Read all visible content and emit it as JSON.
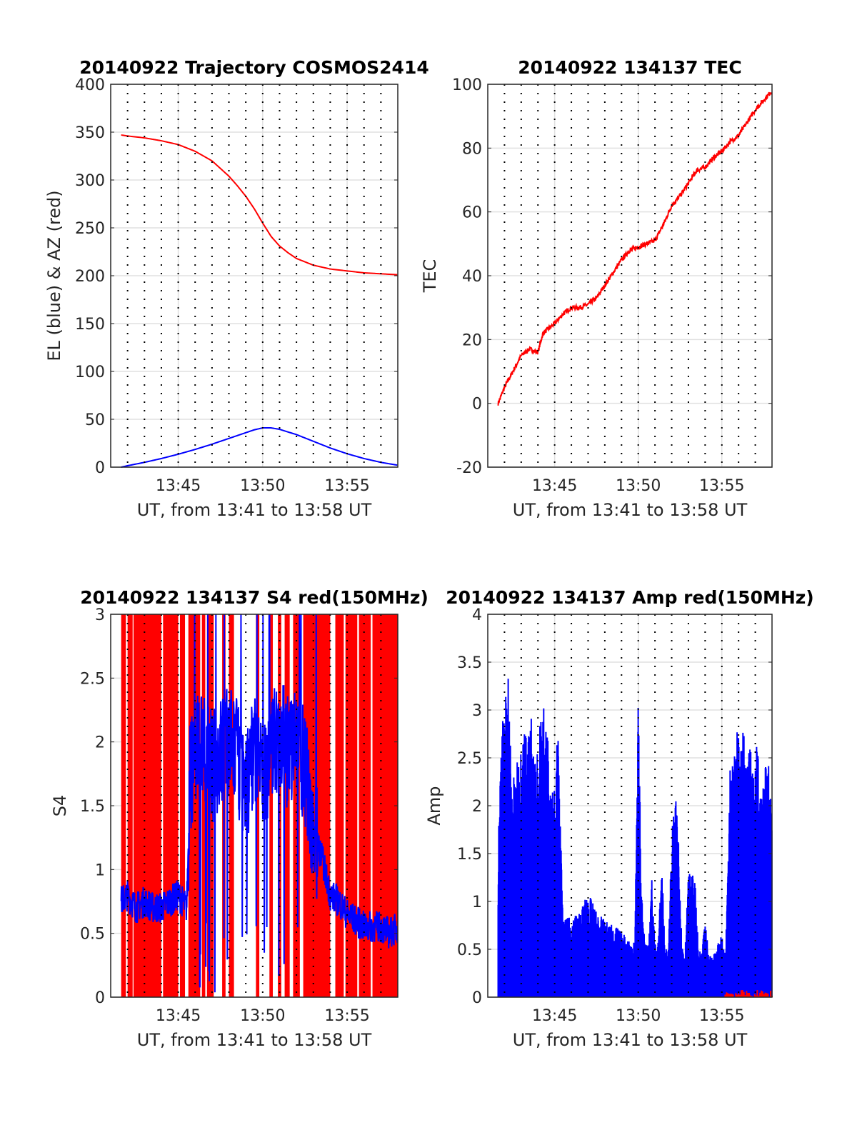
{
  "chart_data": [
    {
      "type": "line",
      "title": "20140922 Trajectory COSMOS2414",
      "xlabel": "UT, from 13:41 to 13:58 UT",
      "ylabel": "EL (blue) & AZ (red)",
      "xlim": [
        41,
        58
      ],
      "ylim": [
        0,
        400
      ],
      "yticks": [
        0,
        50,
        100,
        150,
        200,
        250,
        300,
        350,
        400
      ],
      "xticks": [
        45,
        50,
        55
      ],
      "xtick_labels": [
        "13:45",
        "13:50",
        "13:55"
      ],
      "series": [
        {
          "name": "AZ",
          "color": "#ff0000",
          "x": [
            41.62,
            42,
            43,
            44,
            45,
            46,
            47,
            48,
            48.5,
            49,
            49.5,
            50,
            50.5,
            51,
            51.5,
            52,
            53,
            54,
            55,
            56,
            57,
            58
          ],
          "y": [
            347,
            346,
            344,
            341,
            337,
            330,
            320,
            304,
            294,
            283,
            270,
            255,
            241,
            231,
            224,
            218,
            211,
            207,
            205,
            203,
            202,
            201
          ]
        },
        {
          "name": "EL",
          "color": "#0000ff",
          "x": [
            41.62,
            42,
            43,
            44,
            45,
            46,
            47,
            48,
            49,
            49.5,
            50,
            50.5,
            51,
            52,
            53,
            54,
            55,
            56,
            57,
            58
          ],
          "y": [
            0,
            1.5,
            5,
            9,
            13.5,
            18.5,
            24,
            30,
            36,
            39,
            41,
            41,
            39.5,
            34,
            27,
            20,
            14,
            9,
            5,
            2
          ]
        }
      ]
    },
    {
      "type": "line",
      "title": "20140922 134137 TEC",
      "xlabel": "UT, from 13:41 to 13:58 UT",
      "ylabel": "TEC",
      "xlim": [
        41,
        58
      ],
      "ylim": [
        -20,
        100
      ],
      "yticks": [
        -20,
        0,
        20,
        40,
        60,
        80,
        100
      ],
      "xticks": [
        45,
        50,
        55
      ],
      "xtick_labels": [
        "13:45",
        "13:50",
        "13:55"
      ],
      "series": [
        {
          "name": "TEC",
          "color": "#ff0000",
          "x": [
            41.62,
            42,
            42.5,
            43,
            43.5,
            44,
            44.3,
            45,
            45.5,
            46,
            46.5,
            47,
            47.5,
            48,
            48.5,
            49,
            49.5,
            50,
            50.5,
            51,
            51.5,
            52,
            52.5,
            53,
            53.5,
            54,
            54.5,
            55,
            55.5,
            56,
            56.5,
            57,
            57.5,
            58
          ],
          "y": [
            0,
            5,
            10,
            15,
            17,
            16,
            22,
            25,
            28,
            30,
            30,
            31,
            33,
            37,
            41,
            45,
            48,
            49,
            50,
            51,
            56,
            62,
            65,
            69,
            73,
            74,
            77,
            79,
            82,
            84,
            88,
            92,
            95,
            98
          ]
        }
      ]
    },
    {
      "type": "line",
      "title": "20140922 134137 S4 red(150MHz)",
      "xlabel": "UT, from 13:41 to 13:58 UT",
      "ylabel": "S4",
      "xlim": [
        41,
        58
      ],
      "ylim": [
        0,
        3
      ],
      "yticks": [
        0,
        0.5,
        1,
        1.5,
        2,
        2.5,
        3
      ],
      "xticks": [
        45,
        50,
        55
      ],
      "xtick_labels": [
        "13:45",
        "13:50",
        "13:55"
      ],
      "series": [
        {
          "name": "S4 red fill",
          "color": "#ff0000",
          "x_range": [
            41.62,
            58
          ],
          "gaps": [
            [
              41.9,
              42.0
            ],
            [
              42.3,
              42.35
            ],
            [
              44.0,
              44.1
            ],
            [
              45.0,
              45.1
            ],
            [
              45.4,
              45.6
            ],
            [
              46.3,
              46.4
            ],
            [
              46.6,
              46.7
            ],
            [
              47.1,
              47.6
            ],
            [
              47.8,
              48.0
            ],
            [
              48.3,
              49.6
            ],
            [
              49.8,
              50.4
            ],
            [
              50.6,
              50.9
            ],
            [
              51.1,
              51.3
            ],
            [
              51.6,
              51.8
            ],
            [
              52.2,
              52.4
            ],
            [
              54.0,
              54.3
            ],
            [
              54.8,
              54.9
            ],
            [
              55.6,
              55.7
            ],
            [
              56.4,
              56.5
            ]
          ]
        },
        {
          "name": "S4 blue",
          "color": "#0000ff",
          "x": [
            41.62,
            42,
            42.5,
            43,
            43.5,
            44,
            44.5,
            45,
            45.5,
            45.7,
            46,
            46.5,
            47,
            47.5,
            48,
            48.5,
            49,
            49.5,
            50,
            50.5,
            51,
            51.5,
            52,
            52.5,
            53,
            53.5,
            54,
            54.5,
            55,
            55.5,
            56,
            56.5,
            57,
            57.5,
            58
          ],
          "y": [
            0.75,
            0.8,
            0.7,
            0.75,
            0.7,
            0.7,
            0.75,
            0.8,
            0.7,
            1.7,
            1.9,
            2.0,
            1.8,
            1.9,
            2.0,
            1.9,
            1.6,
            2.0,
            1.7,
            1.9,
            2.1,
            1.9,
            2.0,
            1.8,
            1.3,
            1.1,
            0.8,
            0.75,
            0.65,
            0.6,
            0.55,
            0.55,
            0.55,
            0.5,
            0.55
          ]
        }
      ]
    },
    {
      "type": "bar",
      "title": "20140922 134137 Amp red(150MHz)",
      "xlabel": "UT, from 13:41 to 13:58 UT",
      "ylabel": "Amp",
      "xlim": [
        41,
        58
      ],
      "ylim": [
        0,
        4
      ],
      "yticks": [
        0,
        0.5,
        1,
        1.5,
        2,
        2.5,
        3,
        3.5,
        4
      ],
      "xticks": [
        45,
        50,
        55
      ],
      "xtick_labels": [
        "13:45",
        "13:50",
        "13:55"
      ],
      "series": [
        {
          "name": "Amp blue envelope",
          "color": "#0000ff",
          "x": [
            41.62,
            41.8,
            42,
            42.2,
            42.4,
            42.6,
            42.8,
            43,
            43.2,
            43.4,
            43.6,
            43.8,
            44,
            44.2,
            44.4,
            44.6,
            44.8,
            45,
            45.2,
            45.5,
            46,
            46.5,
            47,
            47.5,
            48,
            48.5,
            49,
            49.4,
            49.6,
            49.8,
            50,
            50.2,
            50.4,
            50.6,
            50.8,
            51,
            51.2,
            51.4,
            51.6,
            51.8,
            52,
            52.2,
            52.4,
            52.6,
            52.8,
            53,
            53.2,
            53.4,
            53.6,
            53.8,
            54,
            54.2,
            54.5,
            55,
            55.2,
            55.5,
            55.7,
            55.9,
            56.1,
            56.3,
            56.5,
            56.7,
            56.9,
            57.1,
            57.3,
            57.5,
            57.7,
            58
          ],
          "y": [
            1.6,
            2.9,
            3.0,
            3.7,
            2.4,
            2.3,
            2.5,
            2.7,
            2.9,
            2.7,
            3.0,
            2.5,
            2.6,
            3.1,
            3.15,
            2.7,
            2.1,
            2.4,
            2.8,
            0.8,
            0.85,
            0.9,
            1.1,
            0.9,
            0.8,
            0.75,
            0.7,
            0.6,
            0.55,
            0.6,
            3.1,
            1.1,
            0.6,
            0.6,
            1.3,
            0.55,
            0.6,
            1.4,
            0.55,
            0.5,
            1.7,
            2.1,
            1.9,
            0.6,
            0.5,
            1.3,
            1.3,
            1.2,
            0.5,
            0.45,
            0.85,
            0.45,
            0.45,
            0.65,
            0.45,
            2.6,
            2.4,
            2.9,
            2.6,
            2.9,
            2.5,
            2.7,
            2.3,
            2.7,
            2.2,
            2.3,
            2.5,
            2.4
          ]
        }
      ]
    }
  ]
}
